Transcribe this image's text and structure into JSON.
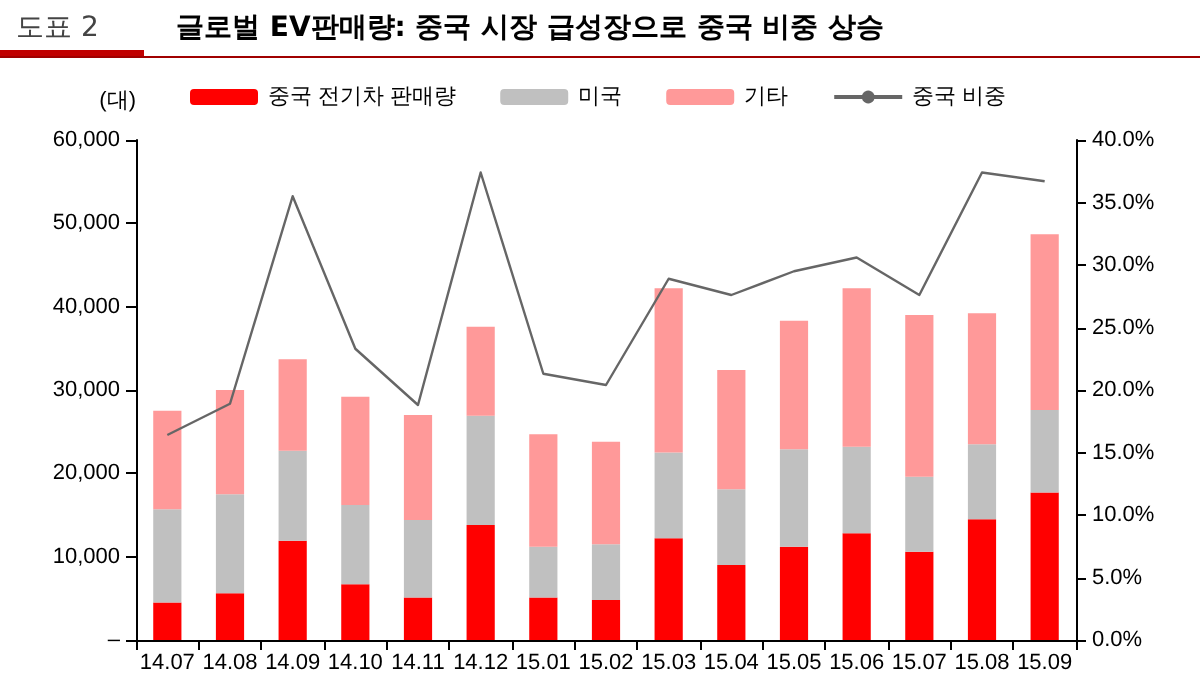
{
  "chart_data": {
    "type": "bar",
    "title": "글로벌 EV판매량: 중국 시장 급성장으로 중국 비중 상승",
    "subtitle": "도표 2",
    "ylabel": "(대)",
    "categories": [
      "14.07",
      "14.08",
      "14.09",
      "14.10",
      "14.11",
      "14.12",
      "15.01",
      "15.02",
      "15.03",
      "15.04",
      "15.05",
      "15.06",
      "15.07",
      "15.08",
      "15.09"
    ],
    "stacked": true,
    "series": [
      {
        "name": "중국 전기차 판매량",
        "color": "#ff0000",
        "values": [
          4500,
          5600,
          11900,
          6700,
          5100,
          13800,
          5100,
          4800,
          12200,
          9000,
          11200,
          12800,
          10600,
          14500,
          17700
        ]
      },
      {
        "name": "미국",
        "color": "#c0c0c0",
        "values": [
          11200,
          11900,
          10800,
          9500,
          9300,
          13100,
          6100,
          6700,
          10300,
          9100,
          11700,
          10400,
          9000,
          9000,
          9900
        ]
      },
      {
        "name": "기타",
        "color": "#ff9999",
        "values": [
          11800,
          12500,
          11000,
          13000,
          12600,
          10700,
          13500,
          12300,
          19700,
          14300,
          15400,
          19000,
          19400,
          15700,
          21100
        ]
      },
      {
        "name": "중국 비중",
        "type": "line",
        "axis": "y2",
        "color": "#666666",
        "values": [
          16.4,
          18.9,
          35.5,
          23.3,
          18.8,
          37.4,
          21.3,
          20.4,
          28.9,
          27.6,
          29.5,
          30.6,
          27.6,
          37.4,
          36.7
        ]
      }
    ],
    "ylim": [
      0,
      60000
    ],
    "yticks": [
      {
        "value": 0,
        "label": "–"
      },
      {
        "value": 10000,
        "label": "10,000"
      },
      {
        "value": 20000,
        "label": "20,000"
      },
      {
        "value": 30000,
        "label": "30,000"
      },
      {
        "value": 40000,
        "label": "40,000"
      },
      {
        "value": 50000,
        "label": "50,000"
      },
      {
        "value": 60000,
        "label": "60,000"
      }
    ],
    "y2lim": [
      0,
      40
    ],
    "y2ticks": [
      {
        "value": 0,
        "label": "0.0%"
      },
      {
        "value": 5,
        "label": "5.0%"
      },
      {
        "value": 10,
        "label": "10.0%"
      },
      {
        "value": 15,
        "label": "15.0%"
      },
      {
        "value": 20,
        "label": "20.0%"
      },
      {
        "value": 25,
        "label": "25.0%"
      },
      {
        "value": 30,
        "label": "30.0%"
      },
      {
        "value": 35,
        "label": "35.0%"
      },
      {
        "value": 40,
        "label": "40.0%"
      }
    ],
    "grid": false,
    "legend": "top",
    "marker": "none",
    "line_style": "solid"
  }
}
